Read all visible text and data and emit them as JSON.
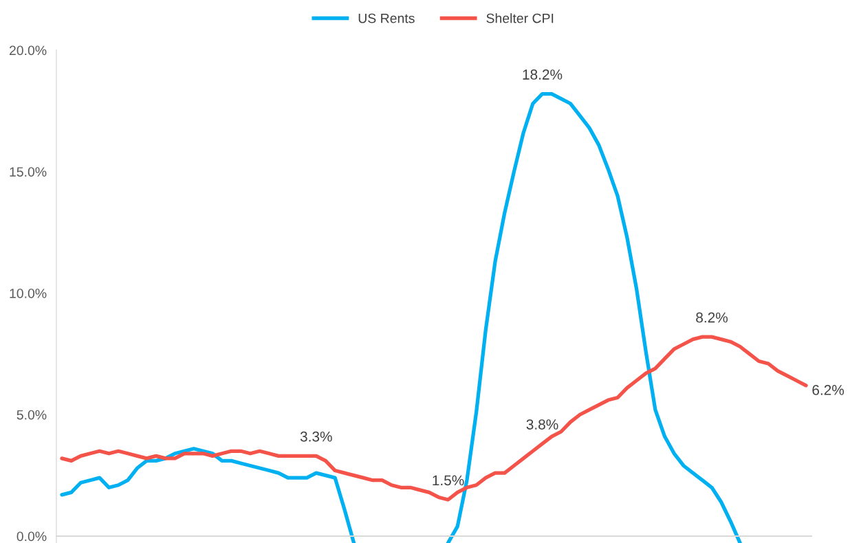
{
  "chart_data": {
    "type": "line",
    "categories": [
      null,
      null,
      null,
      null,
      null,
      null,
      null,
      null,
      null,
      null,
      null,
      null,
      null,
      null,
      null,
      null,
      null,
      null,
      null,
      null,
      null,
      null,
      null,
      null,
      null,
      null,
      null,
      null,
      null,
      null,
      null,
      null,
      null,
      null,
      null,
      null,
      null,
      null,
      null,
      null,
      null,
      null,
      null,
      null,
      null,
      null,
      null,
      null,
      null,
      null,
      null,
      null,
      null,
      null,
      null,
      null,
      null,
      null,
      null,
      null,
      null,
      null,
      null,
      null,
      null,
      null,
      null,
      null,
      null,
      null,
      null,
      null,
      null,
      null,
      null,
      null,
      null,
      null,
      null,
      null
    ],
    "ylim": [
      -0.28,
      20
    ],
    "yticks": [
      {
        "value": 0,
        "label": "0.0%"
      },
      {
        "value": 5,
        "label": "5.0%"
      },
      {
        "value": 10,
        "label": "10.0%"
      },
      {
        "value": 15,
        "label": "15.0%"
      },
      {
        "value": 20,
        "label": "20.0%"
      }
    ],
    "legend": "top",
    "series": [
      {
        "name": "US Rents",
        "color": "#00b0f0",
        "values": [
          1.7,
          1.8,
          2.2,
          2.3,
          2.4,
          2.0,
          2.1,
          2.3,
          2.8,
          3.1,
          3.1,
          3.2,
          3.4,
          3.5,
          3.6,
          3.5,
          3.4,
          3.1,
          3.1,
          3.0,
          2.9,
          2.8,
          2.7,
          2.6,
          2.4,
          2.4,
          2.4,
          2.6,
          2.5,
          2.4,
          1.1,
          -0.28,
          null,
          null,
          null,
          null,
          null,
          null,
          null,
          null,
          null,
          -0.28,
          0.4,
          2.3,
          5.1,
          8.5,
          11.3,
          13.3,
          15.0,
          16.6,
          17.8,
          18.2,
          18.2,
          18.0,
          17.8,
          17.3,
          16.8,
          16.1,
          15.1,
          14.0,
          12.3,
          10.2,
          7.6,
          5.2,
          4.1,
          3.4,
          2.9,
          2.6,
          2.3,
          2.0,
          1.4,
          0.6,
          -0.28,
          null,
          null,
          null,
          null,
          null,
          null,
          null
        ],
        "value_labels": [
          null,
          null,
          null,
          null,
          null,
          null,
          null,
          null,
          null,
          null,
          null,
          null,
          null,
          null,
          null,
          null,
          null,
          null,
          null,
          null,
          null,
          null,
          null,
          null,
          null,
          null,
          null,
          null,
          null,
          null,
          null,
          null,
          null,
          null,
          null,
          null,
          null,
          null,
          null,
          null,
          null,
          null,
          null,
          null,
          null,
          null,
          null,
          null,
          null,
          null,
          null,
          "18.2%",
          null,
          null,
          null,
          null,
          null,
          null,
          null,
          null,
          null,
          null,
          null,
          null,
          null,
          null,
          null,
          null,
          null,
          null,
          null,
          null,
          null,
          null,
          null,
          null,
          null,
          null,
          null,
          null
        ]
      },
      {
        "name": "Shelter CPI",
        "color": "#f4534a",
        "values": [
          3.2,
          3.1,
          3.3,
          3.4,
          3.5,
          3.4,
          3.5,
          3.4,
          3.3,
          3.2,
          3.3,
          3.2,
          3.2,
          3.4,
          3.4,
          3.4,
          3.3,
          3.4,
          3.5,
          3.5,
          3.4,
          3.5,
          3.4,
          3.3,
          3.3,
          3.3,
          3.3,
          3.3,
          3.1,
          2.7,
          2.6,
          2.5,
          2.4,
          2.3,
          2.3,
          2.1,
          2.0,
          2.0,
          1.9,
          1.8,
          1.6,
          1.5,
          1.8,
          2.0,
          2.1,
          2.4,
          2.6,
          2.6,
          2.9,
          3.2,
          3.5,
          3.8,
          4.1,
          4.3,
          4.7,
          5.0,
          5.2,
          5.4,
          5.6,
          5.7,
          6.1,
          6.4,
          6.7,
          6.9,
          7.3,
          7.7,
          7.9,
          8.1,
          8.2,
          8.2,
          8.1,
          8.0,
          7.8,
          7.5,
          7.2,
          7.1,
          6.8,
          6.6,
          6.4,
          6.2
        ],
        "value_labels": [
          null,
          null,
          null,
          null,
          null,
          null,
          null,
          null,
          null,
          null,
          null,
          null,
          null,
          null,
          null,
          null,
          null,
          null,
          null,
          null,
          null,
          null,
          null,
          null,
          null,
          null,
          null,
          "3.3%",
          null,
          null,
          null,
          null,
          null,
          null,
          null,
          null,
          null,
          null,
          null,
          null,
          null,
          "1.5%",
          null,
          null,
          null,
          null,
          null,
          null,
          null,
          null,
          null,
          "3.8%",
          null,
          null,
          null,
          null,
          null,
          null,
          null,
          null,
          null,
          null,
          null,
          null,
          null,
          null,
          null,
          null,
          null,
          "8.2%",
          null,
          null,
          null,
          null,
          null,
          null,
          null,
          null,
          null,
          "6.2%"
        ]
      }
    ]
  }
}
